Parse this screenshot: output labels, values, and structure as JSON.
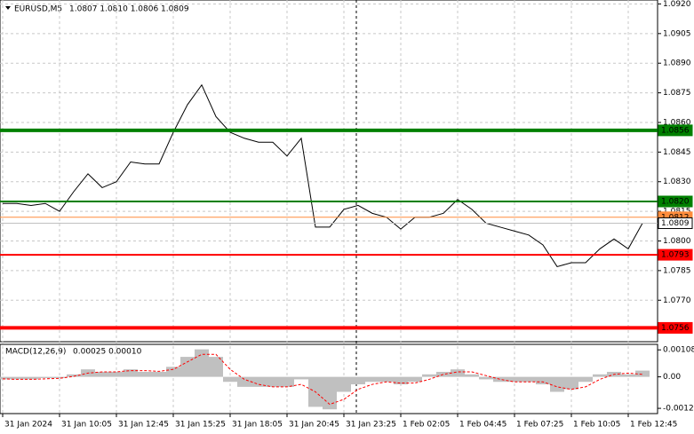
{
  "chart_data": [
    {
      "type": "line",
      "title": "EURUSD,M5",
      "ohlc": "1.0807 1.0810 1.0806 1.0809",
      "categories": [
        "31 Jan 2024",
        null,
        null,
        null,
        "31 Jan 10:05",
        null,
        null,
        null,
        "31 Jan 12:45",
        null,
        null,
        null,
        "31 Jan 15:25",
        null,
        null,
        null,
        "31 Jan 18:05",
        null,
        null,
        null,
        "31 Jan 20:45",
        null,
        null,
        null,
        "31 Jan 23:25",
        null,
        null,
        null,
        "1 Feb 02:05",
        null,
        null,
        null,
        "1 Feb 04:45",
        null,
        null,
        null,
        "1 Feb 07:25",
        null,
        null,
        null,
        "1 Feb 10:05",
        null,
        null,
        null,
        "1 Feb 12:45",
        null
      ],
      "series": [
        {
          "color": "#000000",
          "values": [
            1.0819,
            1.0819,
            1.0818,
            1.0819,
            1.0815,
            1.0825,
            1.0834,
            1.0827,
            1.083,
            1.084,
            1.0839,
            1.0839,
            1.0855,
            1.0869,
            1.0879,
            1.0863,
            1.0855,
            1.0852,
            1.085,
            1.085,
            1.0843,
            1.0852,
            1.0807,
            1.0807,
            1.0816,
            1.0818,
            1.0814,
            1.0812,
            1.0806,
            1.0812,
            1.0812,
            1.0814,
            1.0821,
            1.0816,
            1.0809,
            1.0807,
            1.0805,
            1.0803,
            1.0798,
            1.0787,
            1.0789,
            1.0789,
            1.0796,
            1.0801,
            1.0796,
            1.0809
          ]
        }
      ],
      "ylim": [
        1.0749,
        1.0922
      ],
      "yticks": [
        {
          "value": 1.092,
          "label": "1.0920"
        },
        1.0905,
        {
          "value": 1.089,
          "label": "1.0890"
        },
        1.0875,
        {
          "value": 1.086,
          "label": "1.0860"
        },
        1.0845,
        {
          "value": 1.083,
          "label": "1.0830"
        },
        1.0815,
        {
          "value": 1.08,
          "label": "1.0800"
        },
        1.0785,
        {
          "value": 1.077,
          "label": "1.0770"
        }
      ],
      "grid": true,
      "levels": [
        {
          "value": 1.0856,
          "label": "1.0856",
          "color": "#008000",
          "width": 4
        },
        {
          "value": 1.082,
          "label": "1.0820",
          "color": "#008000",
          "width": 2
        },
        {
          "value": 1.0812,
          "label": "1.0812",
          "color": "#ff8c3c",
          "width": 1
        },
        {
          "value": 1.0809,
          "label": "1.0809",
          "color": "#c0c0c0",
          "width": 1
        },
        {
          "value": 1.0793,
          "label": "1.0793",
          "color": "#ff0000",
          "width": 2
        },
        {
          "value": 1.0756,
          "label": "1.0756",
          "color": "#ff0000",
          "width": 4
        }
      ]
    },
    {
      "type": "macd",
      "title": "MACD(12,26,9)",
      "readout": "0.00025 0.00010",
      "series": [
        {
          "color": "#c0c0c0",
          "values": [
            -0.0001,
            -0.0001,
            -0.0001,
            -5e-05,
            -5e-05,
            0.0001,
            0.0003,
            0.0002,
            0.0002,
            0.0003,
            0.0002,
            0.0002,
            0.0004,
            0.0008,
            0.0011,
            0.0008,
            -0.0002,
            -0.0004,
            -0.0004,
            -0.0004,
            -0.0004,
            -0.0001,
            -0.0012,
            -0.0013,
            -0.0006,
            -0.0003,
            -0.0002,
            -0.0002,
            -0.0003,
            -0.0002,
            0.0001,
            0.0002,
            0.0003,
            0.0001,
            -0.0001,
            -0.0002,
            -0.0002,
            -0.0002,
            -0.0003,
            -0.0006,
            -0.0005,
            -0.0002,
            0.0001,
            0.0002,
            0.0001,
            0.00025
          ]
        },
        {
          "color": "#ff0000",
          "values": [
            -8e-05,
            -0.0001,
            -0.0001,
            -8e-05,
            -6e-05,
            2e-05,
            0.00015,
            0.0002,
            0.0002,
            0.00025,
            0.00025,
            0.00022,
            0.0003,
            0.0006,
            0.0009,
            0.0009,
            0.0003,
            -0.0001,
            -0.0003,
            -0.0004,
            -0.0004,
            -0.0003,
            -0.0006,
            -0.0011,
            -0.0009,
            -0.0005,
            -0.0003,
            -0.0002,
            -0.00025,
            -0.00025,
            -0.0001,
            0.0001,
            0.0002,
            0.0002,
            5e-05,
            -0.0001,
            -0.0002,
            -0.0002,
            -0.0002,
            -0.0004,
            -0.0005,
            -0.0004,
            -0.0001,
            0.0001,
            0.00015,
            0.0001
          ]
        }
      ],
      "ylim": [
        -0.00147,
        0.0013
      ],
      "yticks": [
        {
          "value": 0.00108,
          "label": "0.00108"
        },
        {
          "value": 0,
          "label": "0.00"
        },
        {
          "value": -0.00126,
          "label": "-0.00126"
        }
      ]
    }
  ]
}
